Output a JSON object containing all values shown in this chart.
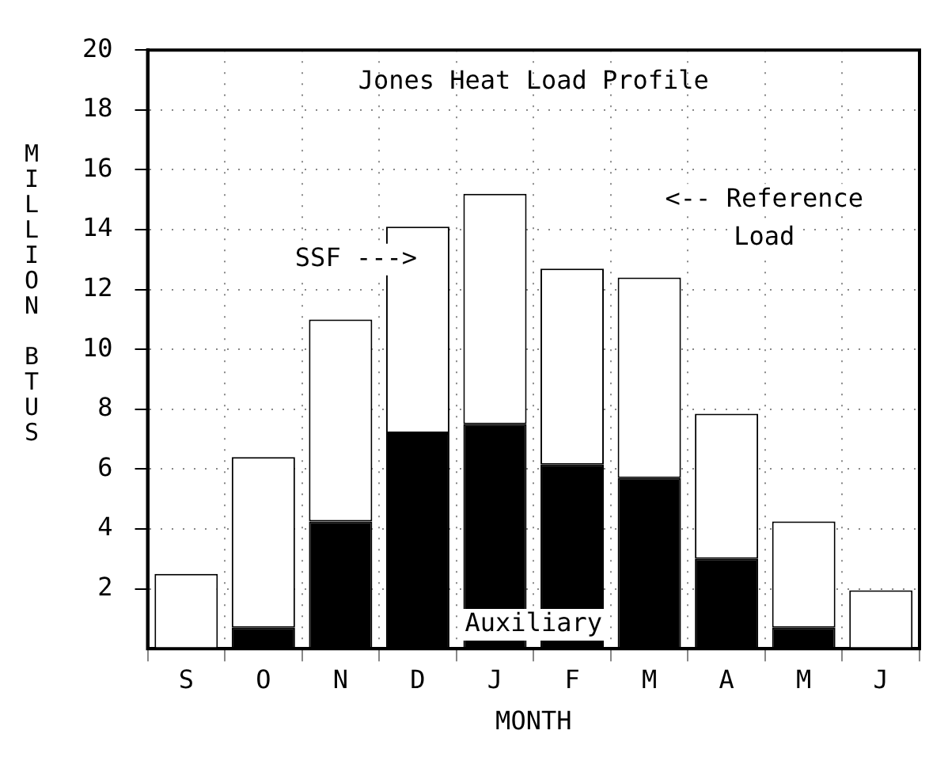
{
  "chart_data": {
    "type": "bar",
    "title": "Jones Heat Load Profile",
    "xlabel": "MONTH",
    "ylabel": "MILLION BTUS",
    "categories": [
      "S",
      "O",
      "N",
      "D",
      "J",
      "F",
      "M",
      "A",
      "M",
      "J"
    ],
    "stacked": true,
    "series": [
      {
        "color": "#000000",
        "values": [
          null,
          0.7,
          4.25,
          7.2,
          7.5,
          6.15,
          5.7,
          3.0,
          0.7,
          0
        ]
      },
      {
        "color": "#ffffff",
        "values": [
          2.5,
          5.7,
          6.75,
          6.9,
          7.7,
          6.55,
          6.7,
          4.85,
          3.55,
          1.95
        ]
      }
    ],
    "ylim": [
      0,
      20
    ],
    "yticks": [
      2,
      4,
      6,
      8,
      10,
      12,
      14,
      16,
      18,
      20
    ],
    "grid": true,
    "legend": false,
    "annotations": [
      "SSF --->",
      "<-- Reference Load",
      "Auxiliary"
    ]
  }
}
